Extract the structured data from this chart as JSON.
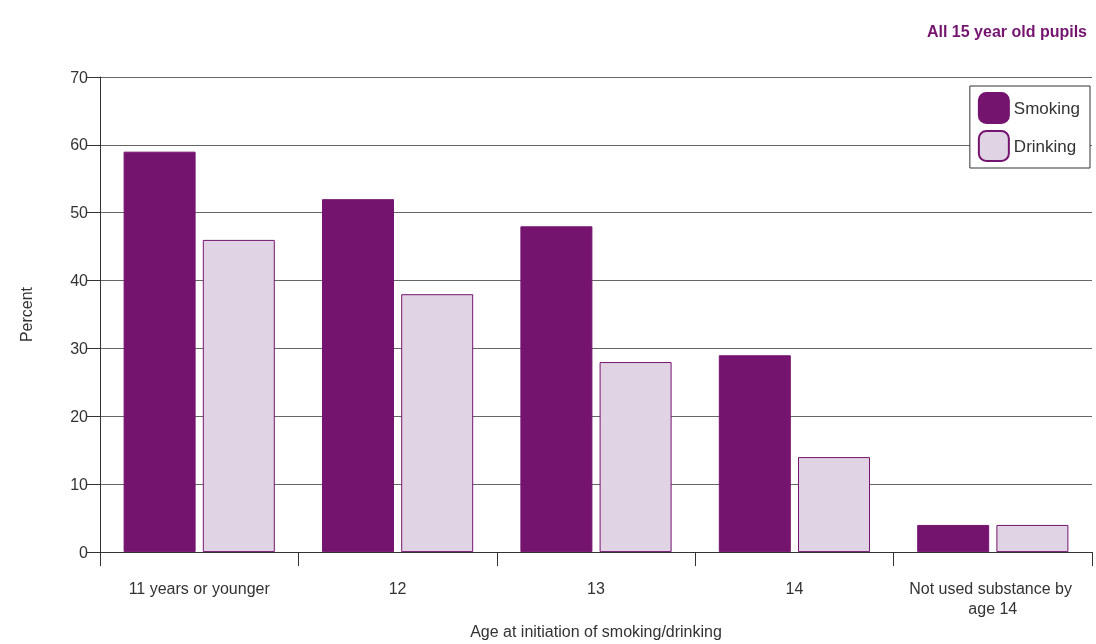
{
  "chart_data": {
    "type": "bar",
    "title": "All 15 year old pupils",
    "xlabel": "Age at initiation of smoking/drinking",
    "ylabel": "Percent",
    "categories": [
      "11 years or younger",
      "12",
      "13",
      "14",
      "Not used substance by age 14"
    ],
    "series": [
      {
        "name": "Smoking",
        "color": "#74146f",
        "values": [
          59,
          52,
          48,
          29,
          4
        ]
      },
      {
        "name": "Drinking",
        "color": "#e0d4e4",
        "values": [
          46,
          38,
          28,
          14,
          4
        ]
      }
    ],
    "ylim": [
      0,
      70
    ],
    "yticks": [
      0,
      10,
      20,
      30,
      40,
      50,
      60,
      70
    ],
    "grid": "y",
    "legend": "top right"
  }
}
